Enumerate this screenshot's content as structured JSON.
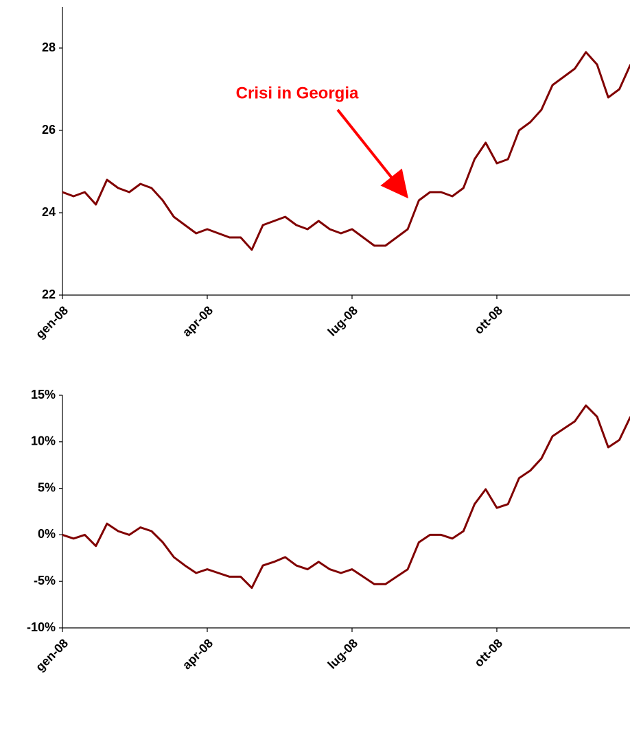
{
  "chart_data": [
    {
      "type": "line",
      "annotation": "Crisi in Georgia",
      "categories": [
        "gen-08",
        null,
        null,
        null,
        null,
        null,
        null,
        null,
        null,
        null,
        null,
        null,
        null,
        "apr-08",
        null,
        null,
        null,
        null,
        null,
        null,
        null,
        null,
        null,
        null,
        null,
        null,
        "lug-08",
        null,
        null,
        null,
        null,
        null,
        null,
        null,
        null,
        null,
        null,
        null,
        null,
        "ott-08",
        null,
        null,
        null,
        null,
        null,
        null,
        null,
        null,
        null,
        null,
        null,
        null
      ],
      "series": [
        {
          "color": "#800000",
          "values": [
            24.5,
            24.4,
            24.5,
            24.2,
            24.8,
            24.6,
            24.5,
            24.7,
            24.6,
            24.3,
            23.9,
            23.7,
            23.5,
            23.6,
            23.5,
            23.4,
            23.4,
            23.1,
            23.7,
            23.8,
            23.9,
            23.7,
            23.6,
            23.8,
            23.6,
            23.5,
            23.6,
            23.4,
            23.2,
            23.2,
            23.4,
            23.6,
            24.3,
            24.5,
            24.5,
            24.4,
            24.6,
            25.3,
            25.7,
            25.2,
            25.3,
            26.0,
            26.2,
            26.5,
            27.1,
            27.3,
            27.5,
            27.9,
            27.6,
            26.8,
            27.0,
            27.6
          ]
        }
      ],
      "ylim": [
        22,
        29
      ],
      "yticks": [
        22,
        24,
        26,
        28
      ]
    },
    {
      "type": "line",
      "categories": [
        "gen-08",
        null,
        null,
        null,
        null,
        null,
        null,
        null,
        null,
        null,
        null,
        null,
        null,
        "apr-08",
        null,
        null,
        null,
        null,
        null,
        null,
        null,
        null,
        null,
        null,
        null,
        null,
        "lug-08",
        null,
        null,
        null,
        null,
        null,
        null,
        null,
        null,
        null,
        null,
        null,
        null,
        "ott-08",
        null,
        null,
        null,
        null,
        null,
        null,
        null,
        null,
        null,
        null,
        null,
        null
      ],
      "series": [
        {
          "color": "#800000",
          "values": [
            0,
            -0.4,
            0,
            -1.2,
            1.2,
            0.4,
            0,
            0.8,
            0.4,
            -0.8,
            -2.4,
            -3.3,
            -4.1,
            -3.7,
            -4.1,
            -4.5,
            -4.5,
            -5.7,
            -3.3,
            -2.9,
            -2.4,
            -3.3,
            -3.7,
            -2.9,
            -3.7,
            -4.1,
            -3.7,
            -4.5,
            -5.3,
            -5.3,
            -4.5,
            -3.7,
            -0.8,
            0,
            0,
            -0.4,
            0.4,
            3.3,
            4.9,
            2.9,
            3.3,
            6.1,
            6.9,
            8.2,
            10.6,
            11.4,
            12.2,
            13.9,
            12.7,
            9.4,
            10.2,
            12.7
          ]
        }
      ],
      "ylim": [
        -10,
        15
      ],
      "yticks": [
        {
          "value": -10,
          "label": "-10%"
        },
        {
          "value": -5,
          "label": "-5%"
        },
        {
          "value": 0,
          "label": "0%"
        },
        {
          "value": 5,
          "label": "5%"
        },
        {
          "value": 10,
          "label": "10%"
        },
        {
          "value": 15,
          "label": "15%"
        }
      ]
    }
  ]
}
